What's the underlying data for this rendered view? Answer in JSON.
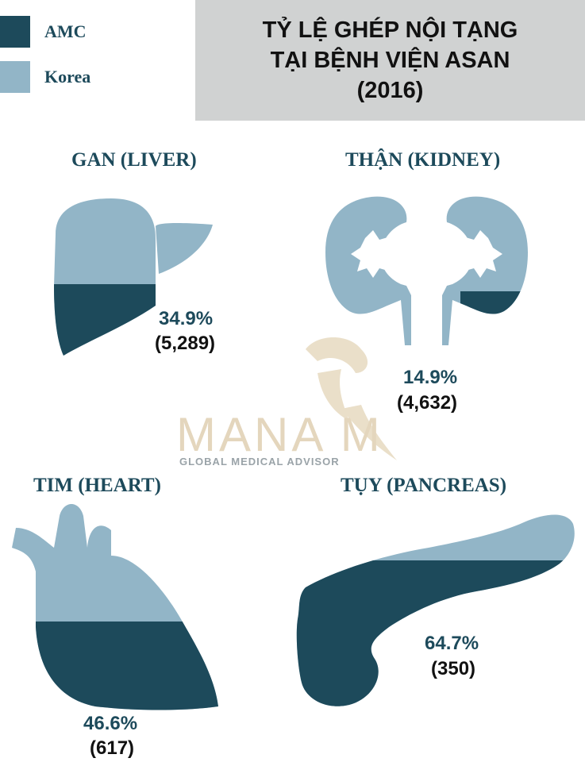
{
  "colors": {
    "amc": "#1d4a5b",
    "korea": "#92b5c7",
    "title_bg": "#d0d2d2"
  },
  "legend": [
    {
      "label": "AMC",
      "color": "#1d4a5b"
    },
    {
      "label": "Korea",
      "color": "#92b5c7"
    }
  ],
  "title_lines": [
    "TỶ LỆ GHÉP NỘI TẠNG",
    "TẠI BỆNH VIỆN ASAN",
    "(2016)"
  ],
  "watermark": {
    "brand": "MANA M",
    "tagline": "GLOBAL MEDICAL ADVISOR"
  },
  "chart_data": {
    "type": "bar",
    "title": "TỶ LỆ GHÉP NỘI TẠNG TẠI BỆNH VIỆN ASAN (2016)",
    "categories": [
      "GAN (LIVER)",
      "THẬN (KIDNEY)",
      "TIM (HEART)",
      "TỤY (PANCREAS)"
    ],
    "series": [
      {
        "name": "AMC",
        "values": [
          34.9,
          14.9,
          46.6,
          64.7
        ]
      }
    ],
    "unit": "%",
    "counts": [
      5289,
      4632,
      617,
      350
    ],
    "organs": [
      {
        "key": "liver",
        "label": "GAN (LIVER)",
        "percent_text": "34.9%",
        "count_text": "(5,289)",
        "share": 0.349
      },
      {
        "key": "kidney",
        "label": "THẬN (KIDNEY)",
        "percent_text": "14.9%",
        "count_text": "(4,632)",
        "share": 0.149
      },
      {
        "key": "heart",
        "label": "TIM (HEART)",
        "percent_text": "46.6%",
        "count_text": "(617)",
        "share": 0.466
      },
      {
        "key": "pancreas",
        "label": "TỤY (PANCREAS)",
        "percent_text": "64.7%",
        "count_text": "(350)",
        "share": 0.647
      }
    ]
  }
}
